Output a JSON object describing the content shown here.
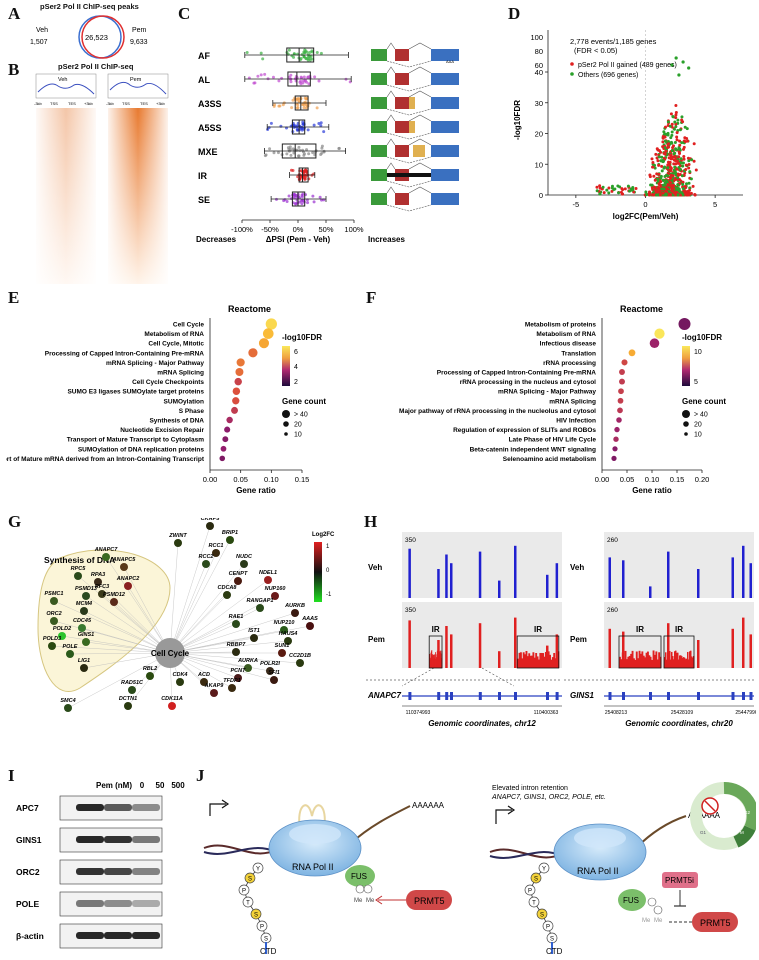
{
  "panels": [
    "A",
    "B",
    "C",
    "D",
    "E",
    "F",
    "G",
    "H",
    "I",
    "J"
  ],
  "A": {
    "title": "pSer2 Pol II ChIP-seq peaks",
    "veh_label": "Veh",
    "pem_label": "Pem",
    "veh_only": "1,507",
    "overlap": "26,523",
    "pem_only": "9,633",
    "veh_color": "#3a6fd0",
    "pem_color": "#e03030"
  },
  "B": {
    "title": "pSer2 Pol II ChIP-seq",
    "veh": "Veh",
    "pem": "Pem",
    "ticks": [
      "-3kb",
      "TSS",
      "TES",
      "+3kb"
    ]
  },
  "C": {
    "chart_data": {
      "type": "box",
      "categories": [
        "AF",
        "AL",
        "A3SS",
        "A5SS",
        "MXE",
        "IR",
        "SE"
      ],
      "colors": [
        "#3cb043",
        "#c04ad0",
        "#f0a050",
        "#2a3ad8",
        "#888888",
        "#e02020",
        "#9a30d0"
      ],
      "xlabel": "ΔPSI (Pem - Veh)",
      "xticks": [
        "-100%",
        "-50%",
        "0%",
        "50%",
        "100%"
      ],
      "left_label": "Decreases",
      "right_label": "Increases",
      "boxes": [
        {
          "min": -0.95,
          "q1": -0.2,
          "median": 0.02,
          "q3": 0.28,
          "max": 0.9
        },
        {
          "min": -0.95,
          "q1": -0.18,
          "median": -0.02,
          "q3": 0.22,
          "max": 0.95
        },
        {
          "min": -0.45,
          "q1": -0.05,
          "median": 0.05,
          "q3": 0.18,
          "max": 0.5
        },
        {
          "min": -0.55,
          "q1": -0.1,
          "median": 0.02,
          "q3": 0.12,
          "max": 0.55
        },
        {
          "min": -0.6,
          "q1": -0.28,
          "median": -0.05,
          "q3": 0.32,
          "max": 0.85
        },
        {
          "min": -0.15,
          "q1": 0.02,
          "median": 0.08,
          "q3": 0.18,
          "max": 0.3
        },
        {
          "min": -0.48,
          "q1": -0.1,
          "median": 0.0,
          "q3": 0.12,
          "max": 0.5
        }
      ]
    },
    "aaa": "AAA"
  },
  "D": {
    "chart_data": {
      "type": "scatter",
      "xlabel": "log2FC(Pem/Veh)",
      "ylabel": "-log10FDR",
      "xticks": [
        "-5",
        "0",
        "5"
      ],
      "yticks_low": [
        "0",
        "10",
        "20",
        "30",
        "40"
      ],
      "yticks_high": [
        "60",
        "80",
        "100"
      ],
      "annotation": "2,778 events/1,185 genes",
      "annotation2": "(FDR < 0.05)",
      "series": [
        {
          "name": "pSer2 Pol II gained (489 genes)",
          "color": "#e02020"
        },
        {
          "name": "Others (696 genes)",
          "color": "#2aa02a"
        }
      ]
    }
  },
  "E": {
    "chart_data": {
      "type": "dot",
      "title": "Reactome",
      "terms": [
        "Cell Cycle",
        "Metabolism of RNA",
        "Cell Cycle, Mitotic",
        "Processing of Capped Intron-Containing Pre-mRNA",
        "mRNA Splicing - Major Pathway",
        "mRNA Splicing",
        "Cell Cycle Checkpoints",
        "SUMO E3 ligases SUMOylate target proteins",
        "SUMOylation",
        "S Phase",
        "Synthesis of DNA",
        "Nucleotide Excision Repair",
        "Transport of Mature Transcript to Cytoplasm",
        "SUMOylation of DNA replication proteins",
        "Transport of Mature mRNA derived from an Intron-Containing Transcript"
      ],
      "ratio": [
        0.1,
        0.095,
        0.088,
        0.07,
        0.05,
        0.048,
        0.046,
        0.043,
        0.042,
        0.04,
        0.032,
        0.028,
        0.025,
        0.022,
        0.02
      ],
      "fdr": [
        6.5,
        5.5,
        5.0,
        4.0,
        4.2,
        4.0,
        3.0,
        3.5,
        3.4,
        2.8,
        2.2,
        1.6,
        1.5,
        1.7,
        1.4
      ],
      "count": [
        42,
        38,
        35,
        30,
        24,
        23,
        20,
        20,
        19,
        17,
        14,
        12,
        11,
        10,
        9
      ],
      "xticks": [
        "0.00",
        "0.05",
        "0.10",
        "0.15"
      ],
      "xlabel": "Gene ratio",
      "legend_title": "-log10FDR",
      "color_ticks": [
        "6",
        "4",
        "2"
      ],
      "size_title": "Gene count",
      "size_ticks": [
        "> 40",
        "20",
        "10"
      ]
    }
  },
  "F": {
    "chart_data": {
      "type": "dot",
      "title": "Reactome",
      "terms": [
        "Metabolism of proteins",
        "Metabolism of RNA",
        "Infectious disease",
        "Translation",
        "rRNA processing",
        "Processing of Capped Intron-Containing Pre-mRNA",
        "rRNA processing in the nucleus and cytosol",
        "mRNA Splicing - Major Pathway",
        "mRNA Splicing",
        "Major pathway of rRNA processing in the nucleolus and cytosol",
        "HIV Infection",
        "Regulation of expression of SLITs and ROBOs",
        "Late Phase of HIV Life Cycle",
        "Beta-catenin independent WNT signaling",
        "Selenoamino acid metabolism"
      ],
      "ratio": [
        0.165,
        0.115,
        0.105,
        0.06,
        0.045,
        0.04,
        0.04,
        0.038,
        0.037,
        0.036,
        0.034,
        0.03,
        0.028,
        0.026,
        0.024
      ],
      "fdr": [
        2.0,
        11.0,
        3.0,
        8.0,
        5.0,
        4.5,
        4.4,
        4.6,
        4.5,
        4.2,
        3.2,
        3.0,
        3.5,
        2.4,
        2.2
      ],
      "count": [
        46,
        36,
        32,
        16,
        12,
        11,
        11,
        10,
        10,
        10,
        9,
        8,
        8,
        7,
        7
      ],
      "xticks": [
        "0.00",
        "0.05",
        "0.10",
        "0.15",
        "0.20"
      ],
      "xlabel": "Gene ratio",
      "legend_title": "-log10FDR",
      "color_ticks": [
        "10",
        "5"
      ],
      "size_title": "Gene count",
      "size_ticks": [
        "> 40",
        "20",
        "10"
      ]
    }
  },
  "G": {
    "hub": "Cell Cycle",
    "group_label": "Synthesis of DNA",
    "legend_title": "Log2FC",
    "legend_ticks": [
      "1",
      "0",
      "-1"
    ],
    "group_nodes": [
      "ANAPC7",
      "ANAPC5",
      "RPC5",
      "RPA3",
      "ANAPC2",
      "PSMD13",
      "RFC3",
      "PSMC1",
      "PSMD12",
      "MCM4",
      "ORC2",
      "CDC45",
      "POLD2",
      "GINS1",
      "POLD3",
      "POLE",
      "LIG1"
    ],
    "outer_nodes": [
      "CKAP5",
      "BRIP1",
      "ZWINT",
      "RCC1",
      "RCC2",
      "NUDC",
      "CENPT",
      "NDEL1",
      "CDCA8",
      "NUP160",
      "RANGAP1",
      "AURKB",
      "AAAS",
      "RAE1",
      "NUP210",
      "IST1",
      "HAUS4",
      "RBBP7",
      "SUN1",
      "CC2D1B",
      "AURKA",
      "POLR2I",
      "PCNT",
      "ACD",
      "CDK4",
      "SFI1",
      "TFDP1",
      "RBL2",
      "AKAP9",
      "RAD51C",
      "DCTN1",
      "SMC4",
      "CDK11A"
    ]
  },
  "H": {
    "left": {
      "gene": "ANAPC7",
      "track1": "Veh",
      "track2": "Pem",
      "scale1": "350",
      "scale2": "350",
      "ir": [
        "IR",
        "IR"
      ],
      "coord_start": "110374993",
      "coord_end": "110400363",
      "caption": "Genomic coordinates, chr12"
    },
    "right": {
      "gene": "GINS1",
      "track1": "Veh",
      "track2": "Pem",
      "scale1": "260",
      "scale2": "260",
      "ir": [
        "IR",
        "IR"
      ],
      "coord_start": "25408213",
      "coord_mid": "25428109",
      "coord_end": "25447996",
      "caption": "Genomic coordinates, chr20"
    }
  },
  "I": {
    "header": "Pem (nM)",
    "doses": [
      "0",
      "50",
      "500"
    ],
    "bands": [
      "APC7",
      "GINS1",
      "ORC2",
      "POLE",
      "β-actin"
    ],
    "intensity": [
      [
        0.95,
        0.7,
        0.45
      ],
      [
        0.95,
        0.9,
        0.55
      ],
      [
        0.9,
        0.8,
        0.5
      ],
      [
        0.55,
        0.45,
        0.3
      ],
      [
        0.95,
        0.95,
        0.95
      ]
    ]
  },
  "J": {
    "polya1": "AAAAAA",
    "polya2": "AAAAAA",
    "pol": "RNA Pol II",
    "fus": "FUS",
    "prmt5": "PRMT5",
    "prmt5i": "PRMT5i",
    "me": "Me",
    "ctd": "CTD",
    "ctd_letters": [
      "Y",
      "S",
      "P",
      "T",
      "S",
      "P",
      "S"
    ],
    "note1": "Elevated intron retention",
    "note2": "ANAPC7, GINS1, ORC2, POLE, etc.",
    "phases": [
      "G1",
      "S",
      "G2",
      "M"
    ]
  }
}
